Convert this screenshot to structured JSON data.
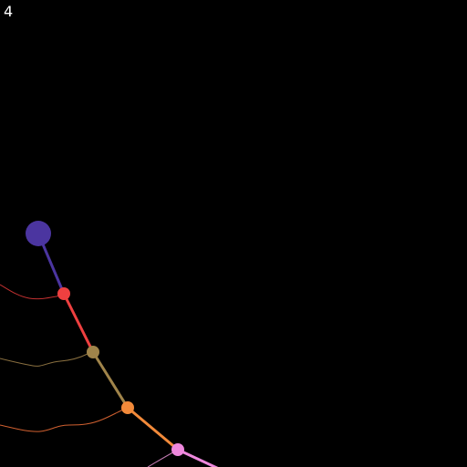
{
  "counter": "4",
  "colors": {
    "background": "#000000",
    "anchor": "#4b35a0",
    "segment_1": "#4b35a0",
    "node_1": "#ee4040",
    "segment_2": "#ee4040",
    "node_2": "#a0844a",
    "segment_3": "#a0844a",
    "node_3": "#f28a3a",
    "segment_4": "#f28a3a",
    "node_4": "#ee88dd",
    "segment_5": "#ee88dd",
    "trail_1": "#c03030",
    "trail_2": "#8a7040",
    "trail_3": "#d06030",
    "trail_4": "#c07ab0"
  }
}
